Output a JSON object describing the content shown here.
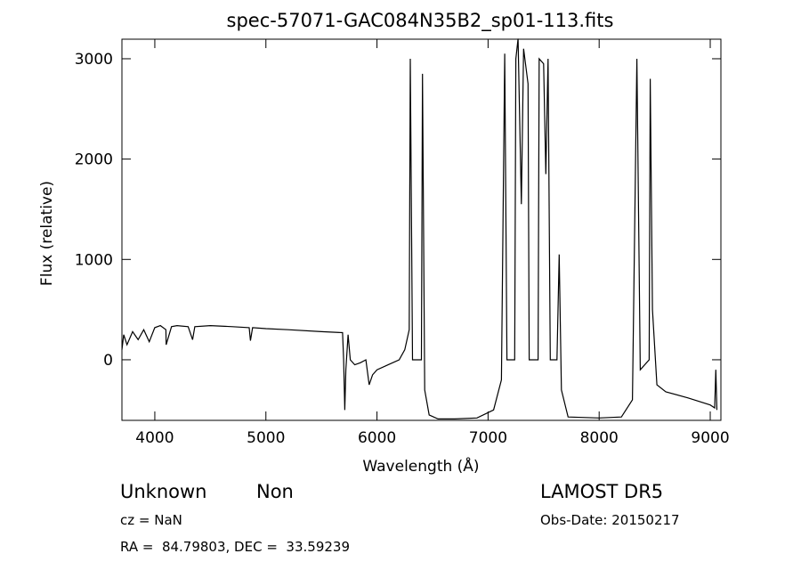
{
  "chart_data": {
    "type": "line",
    "title": "spec-57071-GAC084N35B2_sp01-113.fits",
    "x_label": "Wavelength (Å)",
    "y_label": "Flux (relative)",
    "annotations": [
      "Unknown",
      "Non",
      "LAMOST DR5",
      "cz = NaN",
      "Obs-Date: 20150217",
      "RA =  84.79803, DEC =  33.59239"
    ],
    "color": "#000000",
    "xlim": [
      3704,
      9096
    ],
    "ylim": [
      -604,
      3195
    ],
    "xticks": [
      4000,
      5000,
      6000,
      7000,
      8000,
      9000
    ],
    "yticks": [
      0,
      1000,
      2000,
      3000
    ],
    "x": [
      3704,
      3720,
      3750,
      3800,
      3850,
      3900,
      3950,
      4000,
      4050,
      4100,
      4102,
      4150,
      4200,
      4300,
      4340,
      4360,
      4500,
      4700,
      4850,
      4861,
      4880,
      5000,
      5200,
      5500,
      5690,
      5700,
      5710,
      5720,
      5740,
      5760,
      5800,
      5850,
      5900,
      5930,
      5960,
      6000,
      6100,
      6200,
      6250,
      6290,
      6300,
      6320,
      6400,
      6410,
      6430,
      6470,
      6550,
      6700,
      6900,
      7050,
      7120,
      7150,
      7170,
      7240,
      7250,
      7270,
      7300,
      7320,
      7360,
      7370,
      7450,
      7460,
      7500,
      7520,
      7540,
      7560,
      7620,
      7640,
      7660,
      7720,
      8000,
      8200,
      8300,
      8340,
      8370,
      8450,
      8460,
      8480,
      8520,
      8600,
      8800,
      9000,
      9040,
      9050,
      9060
    ],
    "values": [
      100,
      250,
      150,
      280,
      200,
      300,
      180,
      320,
      340,
      300,
      150,
      330,
      340,
      330,
      200,
      330,
      340,
      330,
      320,
      190,
      320,
      310,
      300,
      280,
      270,
      0,
      -500,
      -100,
      250,
      0,
      -50,
      -30,
      0,
      -250,
      -150,
      -100,
      -50,
      0,
      100,
      300,
      3000,
      0,
      0,
      2850,
      -300,
      -550,
      -590,
      -590,
      -580,
      -500,
      -200,
      3050,
      0,
      0,
      3000,
      3200,
      1550,
      3100,
      2750,
      0,
      0,
      3000,
      2950,
      1850,
      3000,
      0,
      0,
      1050,
      -300,
      -570,
      -580,
      -570,
      -400,
      3000,
      -100,
      0,
      2800,
      500,
      -250,
      -320,
      -380,
      -450,
      -480,
      -100,
      -500
    ]
  }
}
